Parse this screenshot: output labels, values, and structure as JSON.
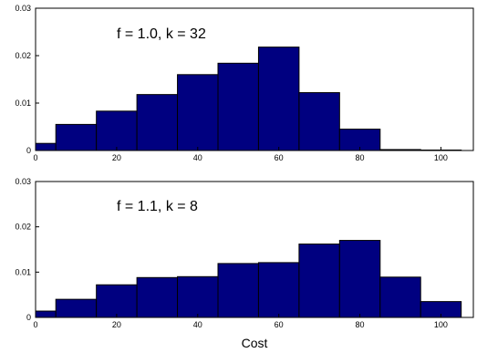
{
  "chart_data": [
    {
      "type": "bar",
      "annotation": "f = 1.0, k = 32",
      "bin_edges": [
        0,
        5,
        15,
        25,
        35,
        45,
        55,
        65,
        75,
        85,
        95,
        105
      ],
      "values": [
        0.0015,
        0.0055,
        0.0083,
        0.0118,
        0.016,
        0.0184,
        0.0218,
        0.0122,
        0.0045,
        0.0002,
        0.0001
      ],
      "xlim": [
        0,
        108
      ],
      "ylim": [
        0,
        0.03
      ],
      "xticks": [
        0,
        20,
        40,
        60,
        80,
        100
      ],
      "yticks": [
        0,
        0.01,
        0.02,
        0.03
      ],
      "xtick_labels": [
        "0",
        "20",
        "40",
        "60",
        "80",
        "100"
      ],
      "ytick_labels": [
        "0",
        "0.01",
        "0.02",
        "0.03"
      ],
      "xlabel": "",
      "ylabel": "",
      "bar_color": "#000080"
    },
    {
      "type": "bar",
      "annotation": "f = 1.1, k = 8",
      "bin_edges": [
        0,
        5,
        15,
        25,
        35,
        45,
        55,
        65,
        75,
        85,
        95,
        105
      ],
      "values": [
        0.0014,
        0.004,
        0.0072,
        0.0088,
        0.009,
        0.0119,
        0.0121,
        0.0162,
        0.017,
        0.0089,
        0.0035
      ],
      "xlim": [
        0,
        108
      ],
      "ylim": [
        0,
        0.03
      ],
      "xticks": [
        0,
        20,
        40,
        60,
        80,
        100
      ],
      "yticks": [
        0,
        0.01,
        0.02,
        0.03
      ],
      "xtick_labels": [
        "0",
        "20",
        "40",
        "60",
        "80",
        "100"
      ],
      "ytick_labels": [
        "0",
        "0.01",
        "0.02",
        "0.03"
      ],
      "xlabel": "Cost",
      "ylabel": "",
      "bar_color": "#000080"
    }
  ]
}
